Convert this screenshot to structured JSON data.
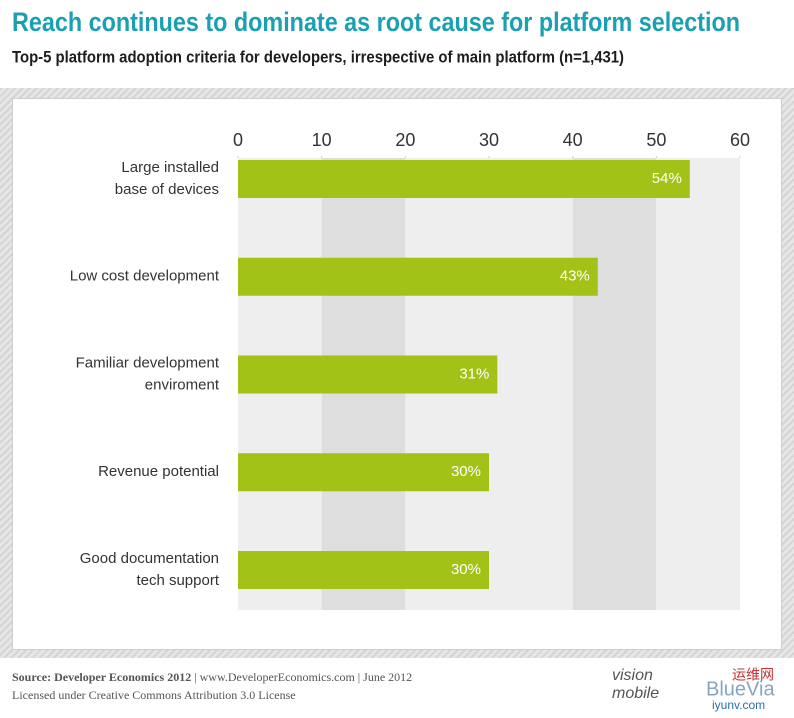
{
  "chart_data": {
    "type": "barh",
    "title": "Reach continues to dominate as root cause for platform selection",
    "subtitle": "Top-5 platform adoption criteria for developers, irrespective of main platform (n=1,431)",
    "categories": [
      "Large installed\nbase of devices",
      "Low cost development",
      "Familiar development\nenviroment",
      "Revenue potential",
      "Good documentation\ntech support"
    ],
    "values": [
      54,
      43,
      31,
      30,
      30
    ],
    "value_labels": [
      "54%",
      "43%",
      "31%",
      "30%",
      "30%"
    ],
    "color": "#a3c217",
    "xlim": [
      0,
      60
    ],
    "xticks": [
      0,
      10,
      20,
      30,
      40,
      50,
      60
    ],
    "grid": true,
    "source_label": "Source: Developer Economics 2012",
    "source_rest": " | www.DeveloperEconomics.com | June 2012",
    "license": "Licensed under Creative Commons Attribution 3.0 License",
    "logo": [
      "vision",
      "mobile"
    ],
    "watermark": [
      "BlueVia",
      "运维网",
      "iyunv.com"
    ]
  }
}
